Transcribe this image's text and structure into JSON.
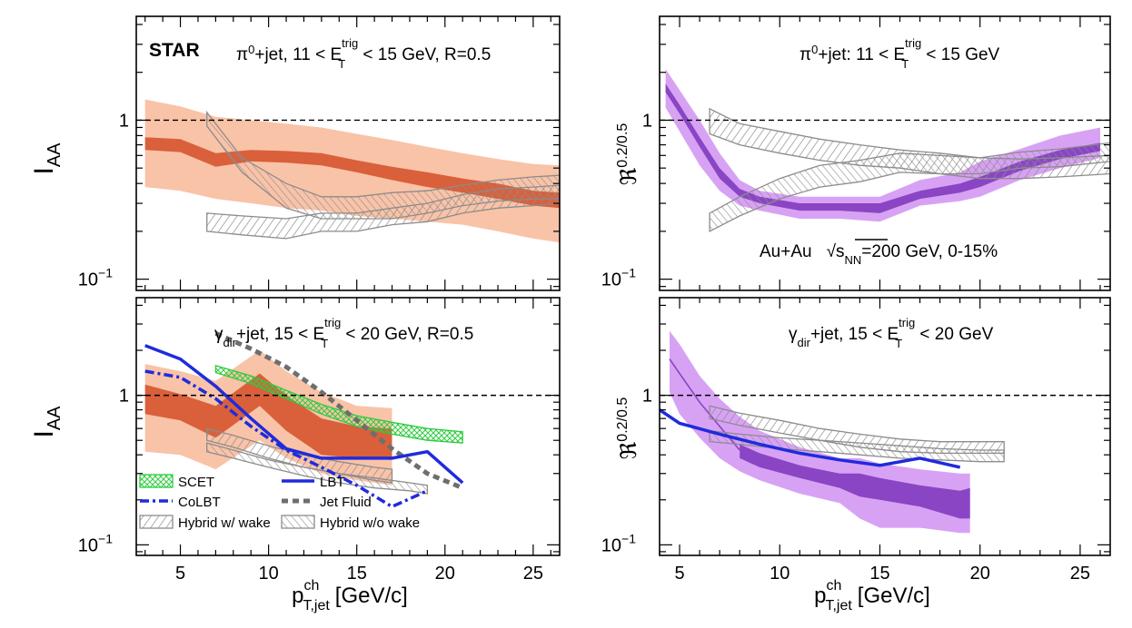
{
  "figure": {
    "experiment_label": "STAR",
    "system_label": "Au+Au",
    "energy_label_sqrt": "s",
    "energy_label_sub": "NN",
    "energy_label_rest": "=200 GeV, 0-15%",
    "x_label": "p",
    "x_label_sup": "ch",
    "x_label_sub": "T,jet",
    "x_label_unit": "[GeV/c]",
    "y_label_iaa": "I",
    "y_label_iaa_sub": "AA",
    "y_label_ratio": "ℜ",
    "y_label_ratio_sup": "0.2/0.5",
    "legend": [
      {
        "key": "scet",
        "label": "SCET",
        "color": "#2ecc40"
      },
      {
        "key": "lbt",
        "label": "LBT",
        "color": "#1f2bdc"
      },
      {
        "key": "colbt",
        "label": "CoLBT",
        "color": "#1f2bdc"
      },
      {
        "key": "jetfluid",
        "label": "Jet Fluid",
        "color": "#6e6e6e"
      },
      {
        "key": "hybrid_wake",
        "label": "Hybrid w/ wake",
        "color": "#8c8c8c"
      },
      {
        "key": "hybrid_nowake",
        "label": "Hybrid w/o wake",
        "color": "#8c8c8c"
      }
    ],
    "colors": {
      "star_stat": "#d9603b",
      "star_sys": "#f9c3a8",
      "ratio_line": "#8a45c4",
      "ratio_stat": "#8a45c4",
      "ratio_sys": "#d8a2f4",
      "hybrid": "#8c8c8c",
      "scet": "#2ecc40",
      "lbt": "#1f2bdc",
      "jetfluid": "#6e6e6e"
    }
  },
  "chart_data": [
    {
      "id": "top_left",
      "type": "area",
      "title_parts": [
        "π",
        "0",
        "+jet, 11 < E",
        "trig",
        "T",
        " < 15 GeV, R=0.5"
      ],
      "ylabel": "I_AA",
      "xlim": [
        2.5,
        26.5
      ],
      "ylim": [
        0.085,
        4.5
      ],
      "yscale": "log",
      "xticks": [
        5,
        10,
        15,
        20,
        25
      ],
      "yticks": [
        {
          "v": 0.1,
          "label": "10",
          "sup": "−1"
        },
        {
          "v": 1,
          "label": "1"
        }
      ],
      "reference_line": 1,
      "series": [
        {
          "name": "STAR sys",
          "kind": "band",
          "color": "#f9c3a8",
          "x": [
            3,
            5,
            7,
            9,
            11,
            13,
            15,
            17,
            19,
            21,
            23,
            25,
            26.5
          ],
          "lo": [
            0.38,
            0.36,
            0.32,
            0.3,
            0.28,
            0.27,
            0.25,
            0.24,
            0.23,
            0.22,
            0.2,
            0.18,
            0.17
          ],
          "hi": [
            1.35,
            1.22,
            1.05,
            1.0,
            0.95,
            0.9,
            0.82,
            0.75,
            0.68,
            0.62,
            0.57,
            0.53,
            0.52
          ]
        },
        {
          "name": "STAR stat",
          "kind": "band",
          "color": "#d9603b",
          "x": [
            3,
            5,
            7,
            9,
            11,
            13,
            15,
            17,
            19,
            21,
            23,
            25,
            26.5
          ],
          "lo": [
            0.65,
            0.63,
            0.51,
            0.55,
            0.54,
            0.52,
            0.47,
            0.42,
            0.38,
            0.35,
            0.32,
            0.29,
            0.28
          ],
          "hi": [
            0.78,
            0.76,
            0.62,
            0.65,
            0.64,
            0.62,
            0.56,
            0.51,
            0.47,
            0.43,
            0.4,
            0.36,
            0.35
          ]
        },
        {
          "name": "Hybrid w/ wake",
          "kind": "hatch_band",
          "hatch": "hatchWake",
          "x": [
            6.5,
            8.5,
            11,
            13,
            15,
            17,
            19,
            21,
            23,
            25,
            26.5
          ],
          "lo": [
            0.2,
            0.19,
            0.18,
            0.2,
            0.2,
            0.22,
            0.23,
            0.26,
            0.28,
            0.29,
            0.3
          ],
          "hi": [
            0.26,
            0.25,
            0.24,
            0.26,
            0.26,
            0.28,
            0.3,
            0.34,
            0.37,
            0.38,
            0.39
          ]
        },
        {
          "name": "Hybrid w/o wake",
          "kind": "hatch_band",
          "hatch": "hatchNoWake",
          "x": [
            6.5,
            8.5,
            11,
            13,
            15,
            17,
            19,
            21,
            23,
            25,
            26.5
          ],
          "lo": [
            0.92,
            0.47,
            0.28,
            0.24,
            0.24,
            0.24,
            0.26,
            0.29,
            0.31,
            0.32,
            0.32
          ],
          "hi": [
            1.12,
            0.58,
            0.4,
            0.33,
            0.33,
            0.35,
            0.36,
            0.39,
            0.42,
            0.44,
            0.45
          ]
        }
      ]
    },
    {
      "id": "top_right",
      "type": "area",
      "title_parts": [
        "π",
        "0",
        "+jet:  11 < E",
        "trig",
        "T",
        " < 15 GeV"
      ],
      "ylabel": "R^0.2/0.5",
      "xlim": [
        4,
        26.5
      ],
      "ylim": [
        0.085,
        4.5
      ],
      "yscale": "log",
      "xticks": [
        5,
        10,
        15,
        20,
        25
      ],
      "yticks": [
        {
          "v": 0.1,
          "label": "10",
          "sup": "−1"
        },
        {
          "v": 1,
          "label": "1"
        }
      ],
      "reference_line": 1,
      "series": [
        {
          "name": "STAR sys",
          "kind": "band",
          "color": "#d8a2f4",
          "x": [
            4.3,
            5,
            6,
            7,
            8,
            9,
            11,
            13,
            15,
            17,
            19,
            20,
            22,
            24,
            26
          ],
          "lo": [
            1.2,
            0.85,
            0.52,
            0.36,
            0.29,
            0.27,
            0.24,
            0.24,
            0.23,
            0.29,
            0.31,
            0.33,
            0.42,
            0.5,
            0.58
          ],
          "hi": [
            2.1,
            1.55,
            1.0,
            0.62,
            0.42,
            0.36,
            0.33,
            0.33,
            0.33,
            0.42,
            0.47,
            0.55,
            0.66,
            0.8,
            0.9
          ]
        },
        {
          "name": "STAR stat",
          "kind": "band",
          "color": "#8a45c4",
          "x": [
            4.3,
            5,
            6,
            7,
            8,
            9,
            11,
            13,
            15,
            17,
            19,
            20,
            22,
            24,
            26
          ],
          "lo": [
            1.5,
            1.1,
            0.68,
            0.43,
            0.33,
            0.3,
            0.27,
            0.27,
            0.26,
            0.32,
            0.35,
            0.38,
            0.48,
            0.57,
            0.64
          ],
          "hi": [
            1.7,
            1.25,
            0.78,
            0.5,
            0.37,
            0.33,
            0.3,
            0.3,
            0.3,
            0.36,
            0.4,
            0.44,
            0.55,
            0.65,
            0.72
          ]
        },
        {
          "name": "Hybrid w/ wake",
          "kind": "hatch_band",
          "hatch": "hatchWake",
          "x": [
            6.5,
            8,
            10,
            12,
            14,
            16,
            18,
            20,
            22,
            24,
            26.5
          ],
          "lo": [
            0.82,
            0.7,
            0.62,
            0.56,
            0.52,
            0.5,
            0.46,
            0.43,
            0.43,
            0.44,
            0.46
          ],
          "hi": [
            1.18,
            0.95,
            0.85,
            0.76,
            0.7,
            0.65,
            0.62,
            0.58,
            0.57,
            0.58,
            0.6
          ]
        },
        {
          "name": "Hybrid w/o wake",
          "kind": "hatch_band",
          "hatch": "hatchNoWake",
          "x": [
            6.5,
            8,
            10,
            12,
            14,
            16,
            18,
            20,
            22,
            24,
            26.5
          ],
          "lo": [
            0.2,
            0.25,
            0.32,
            0.38,
            0.41,
            0.47,
            0.46,
            0.46,
            0.5,
            0.51,
            0.55
          ],
          "hi": [
            0.26,
            0.33,
            0.43,
            0.52,
            0.56,
            0.62,
            0.6,
            0.58,
            0.63,
            0.66,
            0.72
          ]
        }
      ]
    },
    {
      "id": "bottom_left",
      "type": "line",
      "title_parts": [
        "γ",
        "dir",
        "+jet, 15 < E",
        "trig",
        "T",
        " < 20 GeV, R=0.5"
      ],
      "ylabel": "I_AA",
      "xlim": [
        2.5,
        26.5
      ],
      "ylim": [
        0.085,
        4.5
      ],
      "yscale": "log",
      "xticks": [
        5,
        10,
        15,
        20,
        25
      ],
      "yticks": [
        {
          "v": 0.1,
          "label": "10",
          "sup": "−1"
        },
        {
          "v": 1,
          "label": "1"
        }
      ],
      "reference_line": 1,
      "series": [
        {
          "name": "STAR sys",
          "kind": "band",
          "color": "#f9c3a8",
          "x": [
            3,
            5,
            7,
            9.5,
            11,
            13,
            15,
            17
          ],
          "lo": [
            0.42,
            0.4,
            0.32,
            0.5,
            0.38,
            0.3,
            0.27,
            0.25
          ],
          "hi": [
            1.62,
            1.45,
            1.25,
            2.0,
            1.45,
            1.05,
            0.85,
            0.82
          ]
        },
        {
          "name": "STAR stat",
          "kind": "band",
          "color": "#d9603b",
          "x": [
            3,
            5,
            7,
            9.5,
            11,
            13,
            15,
            17
          ],
          "lo": [
            0.75,
            0.68,
            0.52,
            0.85,
            0.58,
            0.4,
            0.38,
            0.37
          ],
          "hi": [
            1.18,
            1.02,
            0.85,
            1.4,
            1.0,
            0.7,
            0.62,
            0.6
          ]
        },
        {
          "name": "SCET",
          "kind": "hatch_band",
          "hatch": "hatchScet",
          "stroke": "#2ecc40",
          "x": [
            7,
            9,
            11,
            13,
            15,
            17,
            19,
            21
          ],
          "lo": [
            1.42,
            1.2,
            0.95,
            0.75,
            0.62,
            0.55,
            0.5,
            0.48
          ],
          "hi": [
            1.58,
            1.35,
            1.08,
            0.87,
            0.73,
            0.66,
            0.6,
            0.57
          ]
        },
        {
          "name": "Hybrid w/ wake",
          "kind": "hatch_band",
          "hatch": "hatchWake",
          "x": [
            6.5,
            8,
            10,
            12,
            14,
            16,
            17
          ],
          "lo": [
            0.5,
            0.45,
            0.38,
            0.33,
            0.3,
            0.27,
            0.26
          ],
          "hi": [
            0.6,
            0.54,
            0.46,
            0.4,
            0.36,
            0.33,
            0.32
          ]
        },
        {
          "name": "Hybrid w/o wake",
          "kind": "hatch_band",
          "hatch": "hatchNoWake",
          "x": [
            6.5,
            8,
            10,
            12,
            14,
            16,
            18,
            19
          ],
          "lo": [
            0.42,
            0.38,
            0.33,
            0.29,
            0.26,
            0.24,
            0.23,
            0.22
          ],
          "hi": [
            0.48,
            0.43,
            0.37,
            0.33,
            0.3,
            0.28,
            0.26,
            0.25
          ]
        },
        {
          "name": "Jet Fluid",
          "kind": "line",
          "color": "#6e6e6e",
          "width": 5,
          "dash": "7 5",
          "x": [
            7,
            9,
            11,
            13,
            15,
            17,
            19,
            21
          ],
          "y": [
            2.6,
            2.05,
            1.55,
            1.05,
            0.68,
            0.44,
            0.3,
            0.24
          ]
        },
        {
          "name": "LBT",
          "kind": "line",
          "color": "#1f2bdc",
          "width": 3.5,
          "dash": "",
          "x": [
            3,
            5,
            7,
            9,
            11,
            13,
            15,
            17,
            19,
            21
          ],
          "y": [
            2.15,
            1.75,
            1.15,
            0.7,
            0.44,
            0.38,
            0.38,
            0.38,
            0.42,
            0.26
          ]
        },
        {
          "name": "CoLBT",
          "kind": "line",
          "color": "#1f2bdc",
          "width": 3.5,
          "dash": "10 4 3 4",
          "x": [
            3,
            5,
            7,
            9,
            11,
            13,
            15,
            17,
            19
          ],
          "y": [
            1.45,
            1.32,
            0.95,
            0.62,
            0.43,
            0.33,
            0.25,
            0.18,
            0.23
          ]
        }
      ]
    },
    {
      "id": "bottom_right",
      "type": "area",
      "title_parts": [
        "γ",
        "dir",
        "+jet, 15 < E",
        "trig",
        "T",
        " < 20 GeV"
      ],
      "ylabel": "R^0.2/0.5",
      "xlim": [
        4,
        26.5
      ],
      "ylim": [
        0.085,
        4.5
      ],
      "yscale": "log",
      "xticks": [
        5,
        10,
        15,
        20,
        25
      ],
      "yticks": [
        {
          "v": 0.1,
          "label": "10",
          "sup": "−1"
        },
        {
          "v": 1,
          "label": "1"
        }
      ],
      "reference_line": 1,
      "series": [
        {
          "name": "STAR sys",
          "kind": "band",
          "color": "#d8a2f4",
          "x": [
            4.5,
            5,
            6,
            7,
            8,
            9,
            11,
            13,
            14,
            15,
            17,
            19,
            19.5
          ],
          "lo": [
            1.05,
            0.75,
            0.52,
            0.38,
            0.31,
            0.27,
            0.22,
            0.19,
            0.15,
            0.13,
            0.13,
            0.12,
            0.12
          ],
          "hi": [
            2.7,
            2.2,
            1.35,
            0.95,
            0.72,
            0.58,
            0.45,
            0.38,
            0.38,
            0.35,
            0.32,
            0.3,
            0.3
          ]
        },
        {
          "name": "STAR stat",
          "kind": "band",
          "color": "#8a45c4",
          "x": [
            8,
            9,
            11,
            13,
            14,
            15,
            17,
            19,
            19.5
          ],
          "lo": [
            0.38,
            0.33,
            0.28,
            0.24,
            0.21,
            0.2,
            0.18,
            0.15,
            0.15
          ],
          "hi": [
            0.47,
            0.41,
            0.34,
            0.3,
            0.3,
            0.28,
            0.25,
            0.23,
            0.24
          ]
        },
        {
          "name": "STAR central",
          "kind": "line",
          "color": "#8a45c4",
          "width": 1.6,
          "dash": "",
          "x": [
            4.5,
            5,
            6,
            7,
            8
          ],
          "y": [
            1.75,
            1.4,
            0.9,
            0.62,
            0.43
          ]
        },
        {
          "name": "Hybrid w/ wake",
          "kind": "hatch_band",
          "hatch": "hatchWake",
          "x": [
            6.5,
            8,
            10,
            12,
            14,
            16,
            18,
            20,
            21.2
          ],
          "lo": [
            0.7,
            0.63,
            0.56,
            0.5,
            0.45,
            0.42,
            0.41,
            0.41,
            0.41
          ],
          "hi": [
            0.85,
            0.76,
            0.68,
            0.6,
            0.55,
            0.51,
            0.49,
            0.49,
            0.49
          ]
        },
        {
          "name": "Hybrid w/o wake",
          "kind": "hatch_band",
          "hatch": "hatchNoWake",
          "x": [
            6.5,
            8,
            10,
            12,
            14,
            16,
            18,
            20,
            21.2
          ],
          "lo": [
            0.49,
            0.47,
            0.44,
            0.42,
            0.4,
            0.38,
            0.37,
            0.36,
            0.36
          ],
          "hi": [
            0.58,
            0.55,
            0.52,
            0.5,
            0.48,
            0.46,
            0.44,
            0.43,
            0.43
          ]
        },
        {
          "name": "LBT",
          "kind": "line",
          "color": "#1f2bdc",
          "width": 3.5,
          "dash": "",
          "x": [
            4,
            5,
            7,
            9,
            11,
            13,
            15,
            17,
            19
          ],
          "y": [
            0.8,
            0.65,
            0.55,
            0.47,
            0.41,
            0.37,
            0.34,
            0.38,
            0.33
          ]
        }
      ]
    }
  ]
}
